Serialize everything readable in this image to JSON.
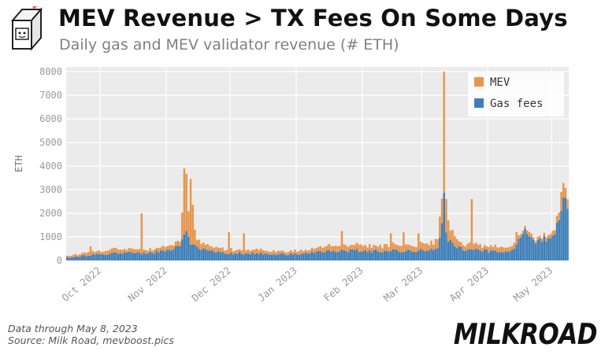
{
  "header": {
    "title": "MEV Revenue > TX Fees On Some Days",
    "subtitle": "Daily gas and MEV validator revenue (# ETH)"
  },
  "footer": {
    "line1": "Data through May 8, 2023",
    "line2": "Source: Milk Road, mevboost.pics"
  },
  "brand": "MILKROAD",
  "colors": {
    "mev": "#e8964d",
    "gas": "#3f7fb8",
    "plot_bg": "#ebebeb"
  },
  "chart_data": {
    "type": "bar",
    "stacked": true,
    "ylabel": "ETH",
    "xlabel": "",
    "ylim": [
      0,
      8200
    ],
    "yticks": [
      0,
      1000,
      2000,
      3000,
      4000,
      5000,
      6000,
      7000,
      8000
    ],
    "x_start": "2022-09-15",
    "x_end": "2023-05-08",
    "xticks": [
      {
        "date": "2022-10-01",
        "label": "Oct 2022"
      },
      {
        "date": "2022-11-01",
        "label": "Nov 2022"
      },
      {
        "date": "2022-12-01",
        "label": "Dec 2022"
      },
      {
        "date": "2023-01-01",
        "label": "Jan 2023"
      },
      {
        "date": "2023-02-01",
        "label": "Feb 2023"
      },
      {
        "date": "2023-03-01",
        "label": "Mar 2023"
      },
      {
        "date": "2023-04-01",
        "label": "Apr 2023"
      },
      {
        "date": "2023-05-01",
        "label": "May 2023"
      }
    ],
    "legend": {
      "position": "top-right",
      "entries": [
        "MEV",
        "Gas fees"
      ]
    },
    "grid": true,
    "series": [
      {
        "name": "Gas fees",
        "points": [
          [
            "2022-09-15",
            120
          ],
          [
            "2022-09-20",
            170
          ],
          [
            "2022-09-25",
            220
          ],
          [
            "2022-10-01",
            250
          ],
          [
            "2022-10-05",
            300
          ],
          [
            "2022-10-10",
            350
          ],
          [
            "2022-10-15",
            320
          ],
          [
            "2022-10-20",
            320
          ],
          [
            "2022-10-25",
            330
          ],
          [
            "2022-10-28",
            380
          ],
          [
            "2022-11-01",
            430
          ],
          [
            "2022-11-04",
            500
          ],
          [
            "2022-11-07",
            550
          ],
          [
            "2022-11-09",
            1100
          ],
          [
            "2022-11-10",
            1300
          ],
          [
            "2022-11-11",
            1050
          ],
          [
            "2022-11-12",
            800
          ],
          [
            "2022-11-14",
            650
          ],
          [
            "2022-11-18",
            500
          ],
          [
            "2022-11-22",
            420
          ],
          [
            "2022-11-25",
            350
          ],
          [
            "2022-12-01",
            320
          ],
          [
            "2022-12-08",
            300
          ],
          [
            "2022-12-15",
            300
          ],
          [
            "2022-12-22",
            280
          ],
          [
            "2022-12-28",
            250
          ],
          [
            "2023-01-01",
            270
          ],
          [
            "2023-01-05",
            300
          ],
          [
            "2023-01-10",
            360
          ],
          [
            "2023-01-15",
            380
          ],
          [
            "2023-01-20",
            400
          ],
          [
            "2023-01-25",
            400
          ],
          [
            "2023-02-01",
            420
          ],
          [
            "2023-02-05",
            400
          ],
          [
            "2023-02-10",
            420
          ],
          [
            "2023-02-15",
            430
          ],
          [
            "2023-02-20",
            420
          ],
          [
            "2023-02-25",
            400
          ],
          [
            "2023-03-01",
            420
          ],
          [
            "2023-03-05",
            450
          ],
          [
            "2023-03-08",
            550
          ],
          [
            "2023-03-10",
            1500
          ],
          [
            "2023-03-11",
            2500
          ],
          [
            "2023-03-12",
            1400
          ],
          [
            "2023-03-13",
            900
          ],
          [
            "2023-03-15",
            700
          ],
          [
            "2023-03-20",
            480
          ],
          [
            "2023-03-25",
            450
          ],
          [
            "2023-04-01",
            400
          ],
          [
            "2023-04-05",
            400
          ],
          [
            "2023-04-10",
            380
          ],
          [
            "2023-04-13",
            480
          ],
          [
            "2023-04-15",
            800
          ],
          [
            "2023-04-17",
            1100
          ],
          [
            "2023-04-18",
            1200
          ],
          [
            "2023-04-20",
            900
          ],
          [
            "2023-04-22",
            850
          ],
          [
            "2023-04-25",
            850
          ],
          [
            "2023-04-28",
            900
          ],
          [
            "2023-05-01",
            1000
          ],
          [
            "2023-05-03",
            1400
          ],
          [
            "2023-05-05",
            1800
          ],
          [
            "2023-05-06",
            2400
          ],
          [
            "2023-05-07",
            2300
          ],
          [
            "2023-05-08",
            2100
          ]
        ]
      },
      {
        "name": "MEV",
        "points": [
          [
            "2022-09-15",
            80
          ],
          [
            "2022-09-20",
            100
          ],
          [
            "2022-09-25",
            120
          ],
          [
            "2022-10-01",
            130
          ],
          [
            "2022-10-05",
            150
          ],
          [
            "2022-10-10",
            150
          ],
          [
            "2022-10-15",
            130
          ],
          [
            "2022-10-20",
            130
          ],
          [
            "2022-10-25",
            140
          ],
          [
            "2022-10-28",
            160
          ],
          [
            "2022-11-01",
            180
          ],
          [
            "2022-11-04",
            200
          ],
          [
            "2022-11-07",
            250
          ],
          [
            "2022-11-09",
            1500
          ],
          [
            "2022-11-10",
            2600
          ],
          [
            "2022-11-11",
            1300
          ],
          [
            "2022-11-12",
            2600
          ],
          [
            "2022-11-14",
            400
          ],
          [
            "2022-11-18",
            250
          ],
          [
            "2022-11-22",
            200
          ],
          [
            "2022-11-25",
            180
          ],
          [
            "2022-12-01",
            150
          ],
          [
            "2022-12-08",
            150
          ],
          [
            "2022-12-15",
            150
          ],
          [
            "2022-12-22",
            140
          ],
          [
            "2022-12-28",
            120
          ],
          [
            "2023-01-01",
            130
          ],
          [
            "2023-01-05",
            150
          ],
          [
            "2023-01-10",
            180
          ],
          [
            "2023-01-15",
            200
          ],
          [
            "2023-01-20",
            250
          ],
          [
            "2023-01-25",
            230
          ],
          [
            "2023-02-01",
            250
          ],
          [
            "2023-02-05",
            230
          ],
          [
            "2023-02-10",
            250
          ],
          [
            "2023-02-15",
            270
          ],
          [
            "2023-02-20",
            250
          ],
          [
            "2023-02-25",
            230
          ],
          [
            "2023-03-01",
            250
          ],
          [
            "2023-03-05",
            300
          ],
          [
            "2023-03-08",
            400
          ],
          [
            "2023-03-10",
            1200
          ],
          [
            "2023-03-11",
            5100
          ],
          [
            "2023-03-12",
            700
          ],
          [
            "2023-03-13",
            500
          ],
          [
            "2023-03-15",
            350
          ],
          [
            "2023-03-20",
            250
          ],
          [
            "2023-03-25",
            230
          ],
          [
            "2023-04-01",
            200
          ],
          [
            "2023-04-05",
            200
          ],
          [
            "2023-04-10",
            200
          ],
          [
            "2023-04-13",
            220
          ],
          [
            "2023-04-15",
            200
          ],
          [
            "2023-04-17",
            150
          ],
          [
            "2023-04-18",
            150
          ],
          [
            "2023-04-20",
            150
          ],
          [
            "2023-04-22",
            150
          ],
          [
            "2023-04-25",
            150
          ],
          [
            "2023-04-28",
            150
          ],
          [
            "2023-05-01",
            200
          ],
          [
            "2023-05-03",
            250
          ],
          [
            "2023-05-05",
            300
          ],
          [
            "2023-05-06",
            500
          ],
          [
            "2023-05-07",
            400
          ],
          [
            "2023-05-08",
            350
          ]
        ]
      }
    ],
    "spikes": [
      {
        "date": "2022-09-26",
        "total": 600
      },
      {
        "date": "2022-10-20",
        "total": 2000
      },
      {
        "date": "2022-11-09",
        "total": 3900
      },
      {
        "date": "2022-11-12",
        "total": 3450
      },
      {
        "date": "2022-11-14",
        "total": 1300
      },
      {
        "date": "2022-11-30",
        "total": 1200
      },
      {
        "date": "2022-12-07",
        "total": 1150
      },
      {
        "date": "2023-01-22",
        "total": 1250
      },
      {
        "date": "2023-02-14",
        "total": 1150
      },
      {
        "date": "2023-02-20",
        "total": 1200
      },
      {
        "date": "2023-02-27",
        "total": 1150
      },
      {
        "date": "2023-03-11",
        "total": 7650
      },
      {
        "date": "2023-03-12",
        "total": 2600
      },
      {
        "date": "2023-03-13",
        "total": 1700
      },
      {
        "date": "2023-03-15",
        "total": 1300
      },
      {
        "date": "2023-03-24",
        "total": 2600
      },
      {
        "date": "2023-04-14",
        "total": 1200
      },
      {
        "date": "2023-05-05",
        "total": 2900
      },
      {
        "date": "2023-05-06",
        "total": 3000
      }
    ]
  }
}
